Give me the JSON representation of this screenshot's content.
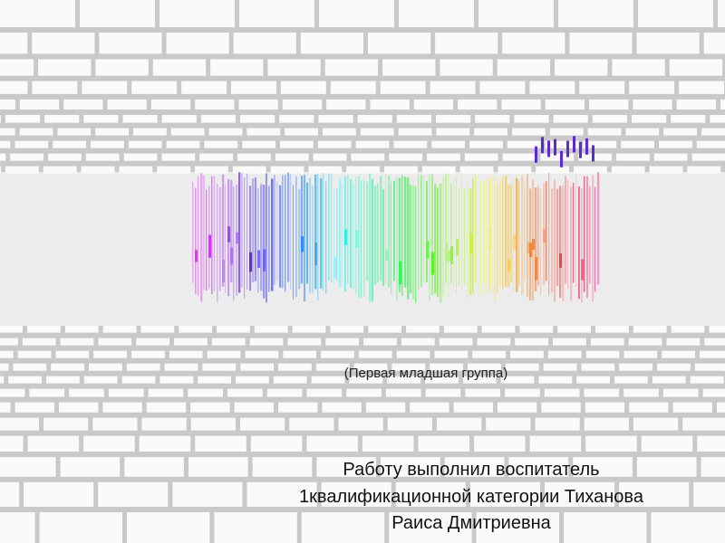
{
  "slide": {
    "subtitle": "(Первая младшая  группа)",
    "author_lines": [
      "Работу выполнил воспитатель",
      "1квалификационной категории Тиханова",
      "Раиса Дмитриевна"
    ]
  }
}
